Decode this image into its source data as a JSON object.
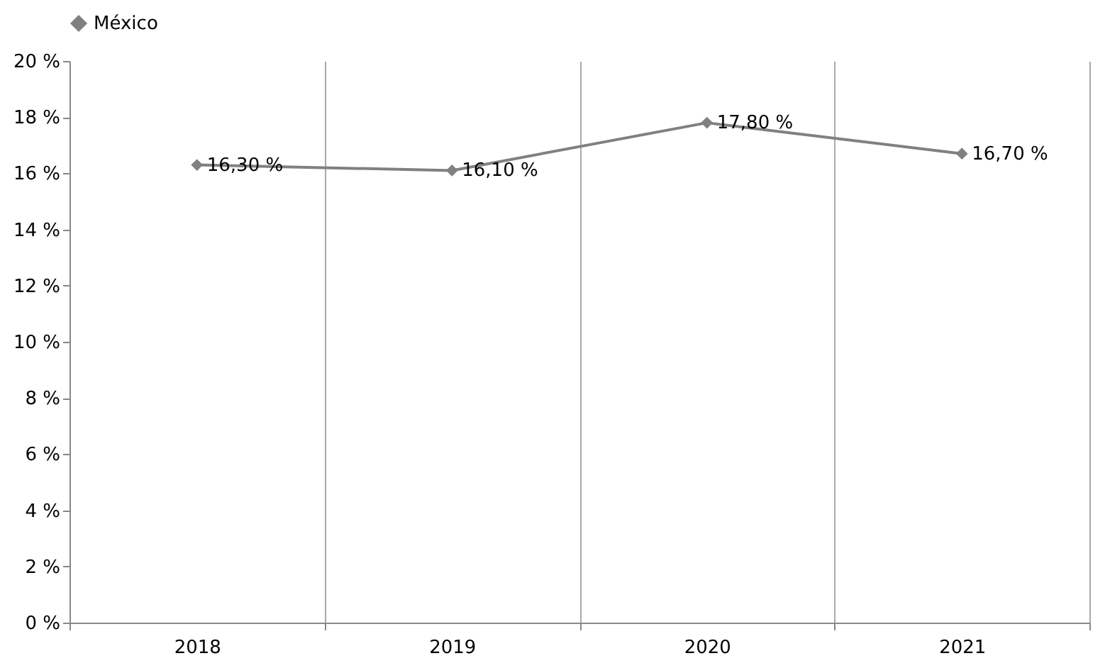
{
  "chart_data": {
    "type": "line",
    "categories": [
      "2018",
      "2019",
      "2020",
      "2021"
    ],
    "series": [
      {
        "name": "México",
        "color": "#808080",
        "values": [
          16.3,
          16.1,
          17.8,
          16.7
        ],
        "value_labels": [
          "16,30 %",
          "16,10 %",
          "17,80 %",
          "16,70 %"
        ]
      }
    ],
    "ylim": [
      0,
      20
    ],
    "yticks": [
      {
        "value": 0,
        "label": "0 %"
      },
      {
        "value": 2,
        "label": "2 %"
      },
      {
        "value": 4,
        "label": "4 %"
      },
      {
        "value": 6,
        "label": "6 %"
      },
      {
        "value": 8,
        "label": "8 %"
      },
      {
        "value": 10,
        "label": "10 %"
      },
      {
        "value": 12,
        "label": "12 %"
      },
      {
        "value": 14,
        "label": "14 %"
      },
      {
        "value": 16,
        "label": "16 %"
      },
      {
        "value": 18,
        "label": "18 %"
      },
      {
        "value": 20,
        "label": "20 %"
      }
    ],
    "grid": "x",
    "legend": "top",
    "marker": "diamond",
    "line_style": "solid"
  }
}
